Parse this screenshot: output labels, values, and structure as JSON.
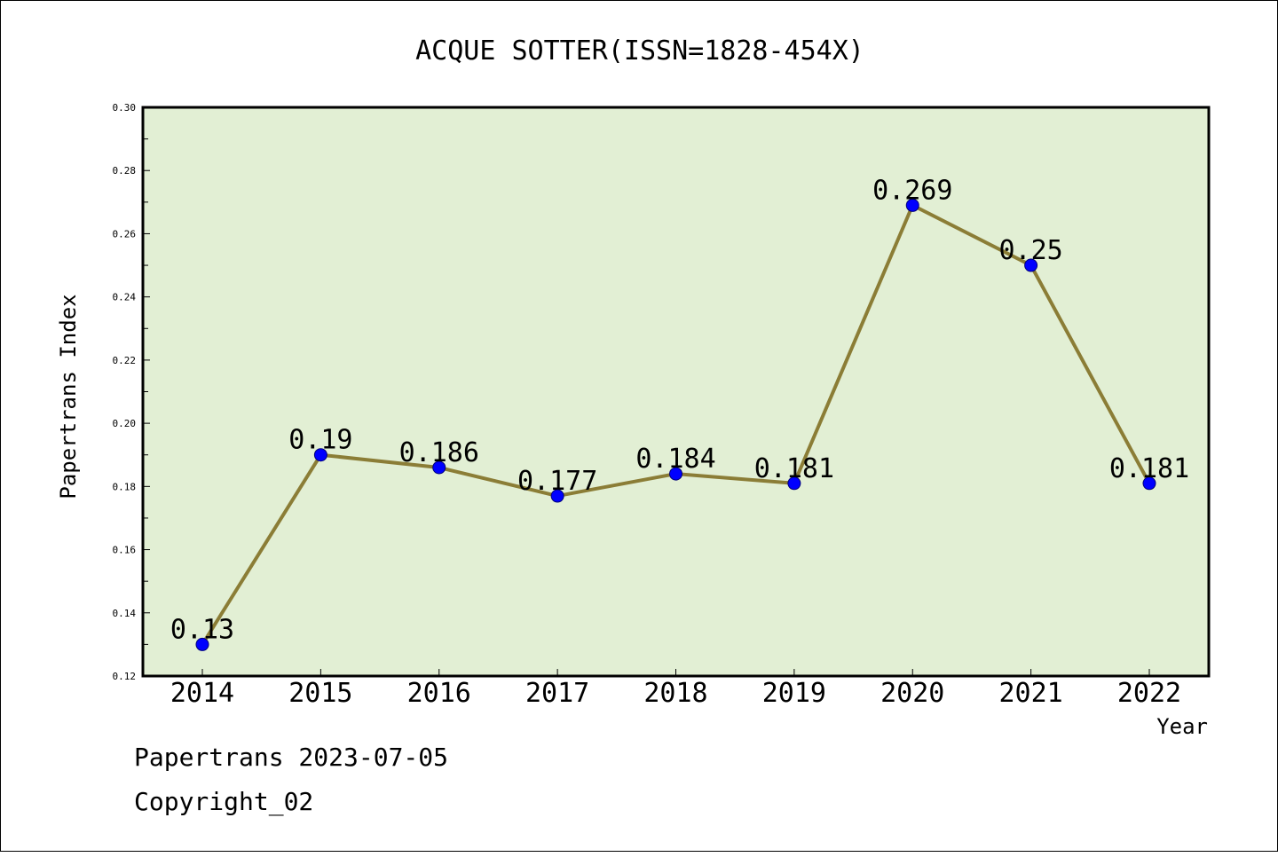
{
  "chart_data": {
    "type": "line",
    "title": "ACQUE SOTTER(ISSN=1828-454X)",
    "xlabel": "Year",
    "ylabel": "Papertrans Index",
    "categories": [
      "2014",
      "2015",
      "2016",
      "2017",
      "2018",
      "2019",
      "2020",
      "2021",
      "2022"
    ],
    "values": [
      0.13,
      0.19,
      0.186,
      0.177,
      0.184,
      0.181,
      0.269,
      0.25,
      0.181
    ],
    "data_labels": [
      "0.13",
      "0.19",
      "0.186",
      "0.177",
      "0.184",
      "0.181",
      "0.269",
      "0.25",
      "0.181"
    ],
    "ylim": [
      0.12,
      0.3
    ],
    "yticks": [
      "0.12",
      "0.14",
      "0.16",
      "0.18",
      "0.20",
      "0.22",
      "0.24",
      "0.26",
      "0.28",
      "0.30"
    ],
    "grid": false,
    "legend": "none",
    "colors": {
      "plot_background": "#e2efd4",
      "line": "#8b7d36",
      "marker": "#0000ff",
      "axes": "#000000"
    }
  },
  "footer": {
    "date_line": "Papertrans 2023-07-05",
    "copyright": "Copyright_02"
  }
}
